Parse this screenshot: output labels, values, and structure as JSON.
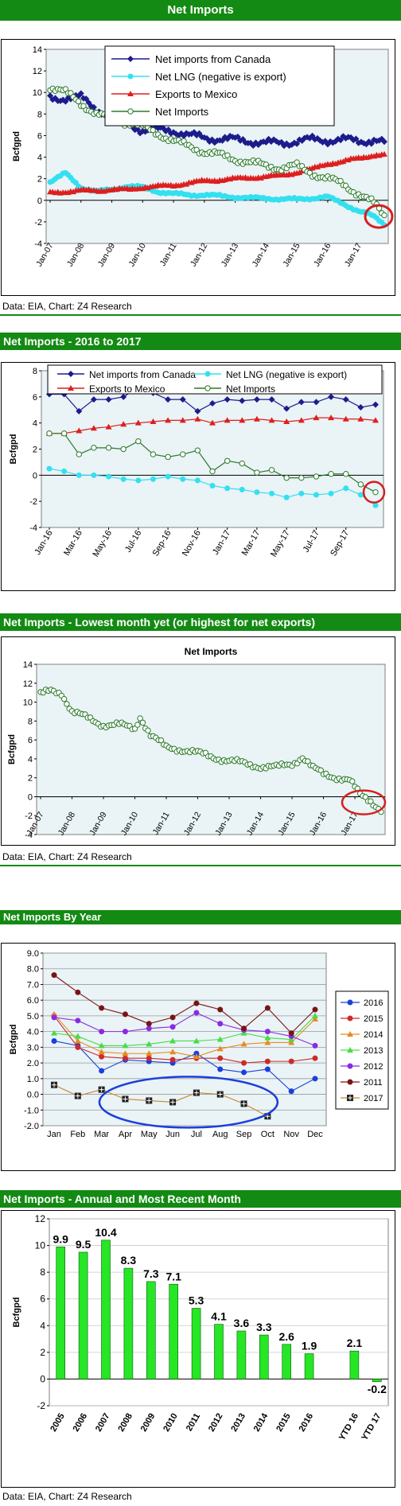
{
  "sections": [
    {
      "title": "Net Imports"
    },
    {
      "title": "Net Imports - 2016 to 2017"
    },
    {
      "title": "Net Imports - Lowest month yet (or highest for net exports)"
    },
    {
      "title": "Net Imports By Year"
    },
    {
      "title": "Net Imports - Annual and Most Recent Month"
    }
  ],
  "source": "Data: EIA, Chart: Z4 Research",
  "colors": {
    "banner": "#138a13",
    "plot_bg": "#eaf3f6",
    "canada": "#1c1c8c",
    "lng": "#33e0f0",
    "mexico": "#dd1f1f",
    "net": "#2b7a2b",
    "circle": "#d42020",
    "bar": "#26e626"
  },
  "chart_data": [
    {
      "type": "line",
      "title": "",
      "ylabel": "Bcfgpd",
      "ylim": [
        -4,
        14
      ],
      "yticks": [
        -4,
        -2,
        0,
        2,
        4,
        6,
        8,
        10,
        12,
        14
      ],
      "xticks": [
        "Jan-07",
        "Jan-08",
        "Jan-09",
        "Jan-10",
        "Jan-11",
        "Jan-12",
        "Jan-13",
        "Jan-14",
        "Jan-15",
        "Jan-16",
        "Jan-17"
      ],
      "x_start": "Jan-07",
      "x_end": "Nov-17",
      "legend_position": "top-right",
      "series": [
        {
          "name": "Net imports from Canada",
          "key": "canada",
          "anchors": [
            [
              0,
              9.5
            ],
            [
              6,
              9.5
            ],
            [
              12,
              9.5
            ],
            [
              18,
              8.5
            ],
            [
              24,
              7.8
            ],
            [
              30,
              7.2
            ],
            [
              36,
              6.5
            ],
            [
              42,
              6.5
            ],
            [
              48,
              6.5
            ],
            [
              54,
              6.0
            ],
            [
              60,
              5.8
            ],
            [
              66,
              5.7
            ],
            [
              72,
              5.6
            ],
            [
              78,
              5.5
            ],
            [
              84,
              5.3
            ],
            [
              90,
              5.3
            ],
            [
              96,
              5.5
            ],
            [
              102,
              5.6
            ],
            [
              108,
              5.6
            ],
            [
              114,
              5.6
            ],
            [
              120,
              5.5
            ],
            [
              126,
              5.6
            ],
            [
              130,
              5.3
            ]
          ]
        },
        {
          "name": "Net LNG (negative is export)",
          "key": "lng",
          "anchors": [
            [
              0,
              1.7
            ],
            [
              6,
              2.5
            ],
            [
              12,
              1.2
            ],
            [
              18,
              0.8
            ],
            [
              24,
              1.0
            ],
            [
              30,
              1.3
            ],
            [
              36,
              1.2
            ],
            [
              42,
              0.8
            ],
            [
              48,
              0.6
            ],
            [
              54,
              0.5
            ],
            [
              60,
              0.5
            ],
            [
              66,
              0.4
            ],
            [
              72,
              0.3
            ],
            [
              78,
              0.2
            ],
            [
              84,
              0.2
            ],
            [
              90,
              0.1
            ],
            [
              96,
              0.1
            ],
            [
              102,
              0.2
            ],
            [
              108,
              0.3
            ],
            [
              114,
              -0.3
            ],
            [
              120,
              -1.0
            ],
            [
              126,
              -1.5
            ],
            [
              130,
              -2.2
            ]
          ]
        },
        {
          "name": "Exports to Mexico",
          "key": "mexico",
          "anchors": [
            [
              0,
              0.7
            ],
            [
              6,
              0.8
            ],
            [
              12,
              0.9
            ],
            [
              18,
              0.9
            ],
            [
              24,
              1.0
            ],
            [
              30,
              1.0
            ],
            [
              36,
              1.2
            ],
            [
              42,
              1.3
            ],
            [
              48,
              1.4
            ],
            [
              54,
              1.6
            ],
            [
              60,
              1.8
            ],
            [
              66,
              1.9
            ],
            [
              72,
              2.0
            ],
            [
              78,
              2.1
            ],
            [
              84,
              2.2
            ],
            [
              90,
              2.3
            ],
            [
              96,
              2.6
            ],
            [
              102,
              2.9
            ],
            [
              108,
              3.4
            ],
            [
              114,
              3.6
            ],
            [
              120,
              3.9
            ],
            [
              126,
              4.2
            ],
            [
              130,
              4.2
            ]
          ]
        },
        {
          "name": "Net Imports",
          "key": "net",
          "anchors": [
            [
              0,
              10.5
            ],
            [
              6,
              10.0
            ],
            [
              12,
              9.0
            ],
            [
              18,
              8.0
            ],
            [
              24,
              7.5
            ],
            [
              30,
              7.2
            ],
            [
              36,
              6.8
            ],
            [
              42,
              6.2
            ],
            [
              48,
              5.5
            ],
            [
              54,
              5.0
            ],
            [
              60,
              4.5
            ],
            [
              66,
              4.2
            ],
            [
              72,
              3.8
            ],
            [
              78,
              3.5
            ],
            [
              84,
              3.2
            ],
            [
              90,
              3.0
            ],
            [
              96,
              3.2
            ],
            [
              102,
              2.5
            ],
            [
              108,
              2.0
            ],
            [
              114,
              1.5
            ],
            [
              120,
              0.6
            ],
            [
              126,
              -0.3
            ],
            [
              130,
              -1.4
            ]
          ]
        }
      ]
    },
    {
      "type": "line",
      "title": "",
      "ylabel": "Bcfgpd",
      "ylim": [
        -4,
        8
      ],
      "yticks": [
        -4,
        -2,
        0,
        2,
        4,
        6,
        8
      ],
      "xticks": [
        "Jan-16",
        "Mar-16",
        "May-16",
        "Jul-16",
        "Sep-16",
        "Nov-16",
        "Jan-17",
        "Mar-17",
        "May-17",
        "Jul-17",
        "Sep-17"
      ],
      "x": [
        "Jan-16",
        "Feb-16",
        "Mar-16",
        "Apr-16",
        "May-16",
        "Jun-16",
        "Jul-16",
        "Aug-16",
        "Sep-16",
        "Oct-16",
        "Nov-16",
        "Dec-16",
        "Jan-17",
        "Feb-17",
        "Mar-17",
        "Apr-17",
        "May-17",
        "Jun-17",
        "Jul-17",
        "Aug-17",
        "Sep-17",
        "Oct-17",
        "Nov-17"
      ],
      "legend_position": "top",
      "series": [
        {
          "name": "Net imports from Canada",
          "key": "canada",
          "values": [
            6.2,
            6.2,
            4.9,
            5.8,
            5.8,
            6.0,
            6.7,
            6.3,
            5.8,
            5.8,
            4.9,
            5.5,
            5.8,
            5.7,
            5.8,
            5.8,
            5.1,
            5.6,
            5.6,
            6.0,
            5.8,
            5.2,
            5.4
          ]
        },
        {
          "name": "Net LNG (negative is export)",
          "key": "lng",
          "values": [
            0.5,
            0.3,
            0.0,
            0.0,
            -0.1,
            -0.3,
            -0.4,
            -0.3,
            -0.1,
            -0.3,
            -0.4,
            -0.8,
            -1.0,
            -1.1,
            -1.3,
            -1.4,
            -1.7,
            -1.4,
            -1.5,
            -1.4,
            -1.0,
            -1.5,
            -2.3
          ]
        },
        {
          "name": "Exports to Mexico",
          "key": "mexico",
          "values": [
            3.2,
            3.2,
            3.4,
            3.6,
            3.7,
            3.9,
            4.0,
            4.1,
            4.2,
            4.2,
            4.3,
            4.0,
            4.2,
            4.2,
            4.3,
            4.2,
            4.1,
            4.2,
            4.4,
            4.4,
            4.3,
            4.3,
            4.2
          ]
        },
        {
          "name": "Net Imports",
          "key": "net",
          "values": [
            3.2,
            3.2,
            1.6,
            2.1,
            2.1,
            2.0,
            2.6,
            1.6,
            1.4,
            1.6,
            1.9,
            0.3,
            1.1,
            0.9,
            0.2,
            0.4,
            -0.2,
            -0.2,
            -0.1,
            0.1,
            0.1,
            -0.7,
            -1.3
          ]
        }
      ]
    },
    {
      "type": "line",
      "title": "Net Imports",
      "ylabel": "Bcfgpd",
      "ylim": [
        -4,
        14
      ],
      "yticks": [
        -4,
        -2,
        0,
        2,
        4,
        6,
        8,
        10,
        12,
        14
      ],
      "xticks": [
        "Jan-07",
        "Jan-08",
        "Jan-09",
        "Jan-10",
        "Jan-11",
        "Jan-12",
        "Jan-13",
        "Jan-14",
        "Jan-15",
        "Jan-16",
        "Jan-17"
      ],
      "x_start": "Jan-07",
      "x_end": "Nov-17",
      "series": [
        {
          "name": "Net Imports",
          "key": "net",
          "anchors": [
            [
              0,
              10.8
            ],
            [
              4,
              11.2
            ],
            [
              8,
              11.0
            ],
            [
              12,
              9.0
            ],
            [
              18,
              8.3
            ],
            [
              24,
              7.6
            ],
            [
              30,
              7.6
            ],
            [
              36,
              7.2
            ],
            [
              38,
              8.5
            ],
            [
              42,
              6.5
            ],
            [
              48,
              5.2
            ],
            [
              54,
              5.0
            ],
            [
              60,
              4.6
            ],
            [
              66,
              4.2
            ],
            [
              72,
              3.8
            ],
            [
              78,
              3.5
            ],
            [
              84,
              3.2
            ],
            [
              90,
              3.1
            ],
            [
              96,
              3.5
            ],
            [
              100,
              4.2
            ],
            [
              104,
              3.0
            ],
            [
              108,
              2.4
            ],
            [
              114,
              2.0
            ],
            [
              118,
              1.7
            ],
            [
              122,
              0.2
            ],
            [
              126,
              -0.4
            ],
            [
              130,
              -1.4
            ]
          ]
        }
      ]
    },
    {
      "type": "line",
      "title": "",
      "ylabel": "Bcfgpd",
      "ylim": [
        -2,
        9
      ],
      "yticks": [
        "9.0",
        "8.0",
        "7.0",
        "6.0",
        "5.0",
        "4.0",
        "3.0",
        "2.0",
        "1.0",
        "0.0",
        "-1.0",
        "-2.0"
      ],
      "categories": [
        "Jan",
        "Feb",
        "Mar",
        "Apr",
        "May",
        "Jun",
        "Jul",
        "Aug",
        "Sep",
        "Oct",
        "Nov",
        "Dec"
      ],
      "legend_position": "right",
      "series": [
        {
          "name": "2016",
          "color": "#1a3fdc",
          "values": [
            3.4,
            3.1,
            1.5,
            2.2,
            2.1,
            2.0,
            2.6,
            1.6,
            1.4,
            1.6,
            0.2,
            1.0
          ]
        },
        {
          "name": "2015",
          "color": "#cc2b2b",
          "values": [
            5.0,
            3.0,
            2.4,
            2.3,
            2.3,
            2.2,
            2.3,
            2.3,
            2.0,
            2.1,
            2.1,
            2.3
          ]
        },
        {
          "name": "2014",
          "color": "#e88a1c",
          "values": [
            5.1,
            3.4,
            2.7,
            2.6,
            2.6,
            2.7,
            2.4,
            2.9,
            3.2,
            3.3,
            3.3,
            4.8
          ]
        },
        {
          "name": "2013",
          "color": "#44dd44",
          "values": [
            3.9,
            3.7,
            3.1,
            3.1,
            3.2,
            3.4,
            3.4,
            3.5,
            3.9,
            3.6,
            3.5,
            5.0
          ]
        },
        {
          "name": "2012",
          "color": "#8a2be2",
          "values": [
            4.9,
            4.7,
            4.0,
            4.0,
            4.2,
            4.3,
            5.2,
            4.5,
            4.1,
            4.0,
            3.7,
            3.1
          ]
        },
        {
          "name": "2011",
          "color": "#7a1414",
          "values": [
            7.6,
            6.5,
            5.5,
            5.1,
            4.5,
            4.9,
            5.8,
            5.4,
            4.2,
            5.5,
            3.9,
            5.4
          ]
        },
        {
          "name": "2017",
          "color": "#c8862a",
          "values": [
            0.6,
            -0.1,
            0.3,
            -0.3,
            -0.4,
            -0.5,
            0.1,
            0.0,
            -0.6,
            -1.4,
            null,
            null
          ]
        }
      ]
    },
    {
      "type": "bar",
      "title": "",
      "ylabel": "Bcfgpd",
      "ylim": [
        -2,
        12
      ],
      "yticks": [
        -2,
        0,
        2,
        4,
        6,
        8,
        10,
        12
      ],
      "categories": [
        "2005",
        "2006",
        "2007",
        "2008",
        "2009",
        "2010",
        "2011",
        "2012",
        "2013",
        "2014",
        "2015",
        "2016",
        "",
        "YTD 16",
        "YTD 17"
      ],
      "values": [
        9.9,
        9.5,
        10.4,
        8.3,
        7.3,
        7.1,
        5.3,
        4.1,
        3.6,
        3.3,
        2.6,
        1.9,
        null,
        2.1,
        -0.2
      ],
      "labels": [
        "9.9",
        "9.5",
        "10.4",
        "8.3",
        "7.3",
        "7.1",
        "5.3",
        "4.1",
        "3.6",
        "3.3",
        "2.6",
        "1.9",
        "",
        "2.1",
        "-0.2"
      ]
    }
  ]
}
